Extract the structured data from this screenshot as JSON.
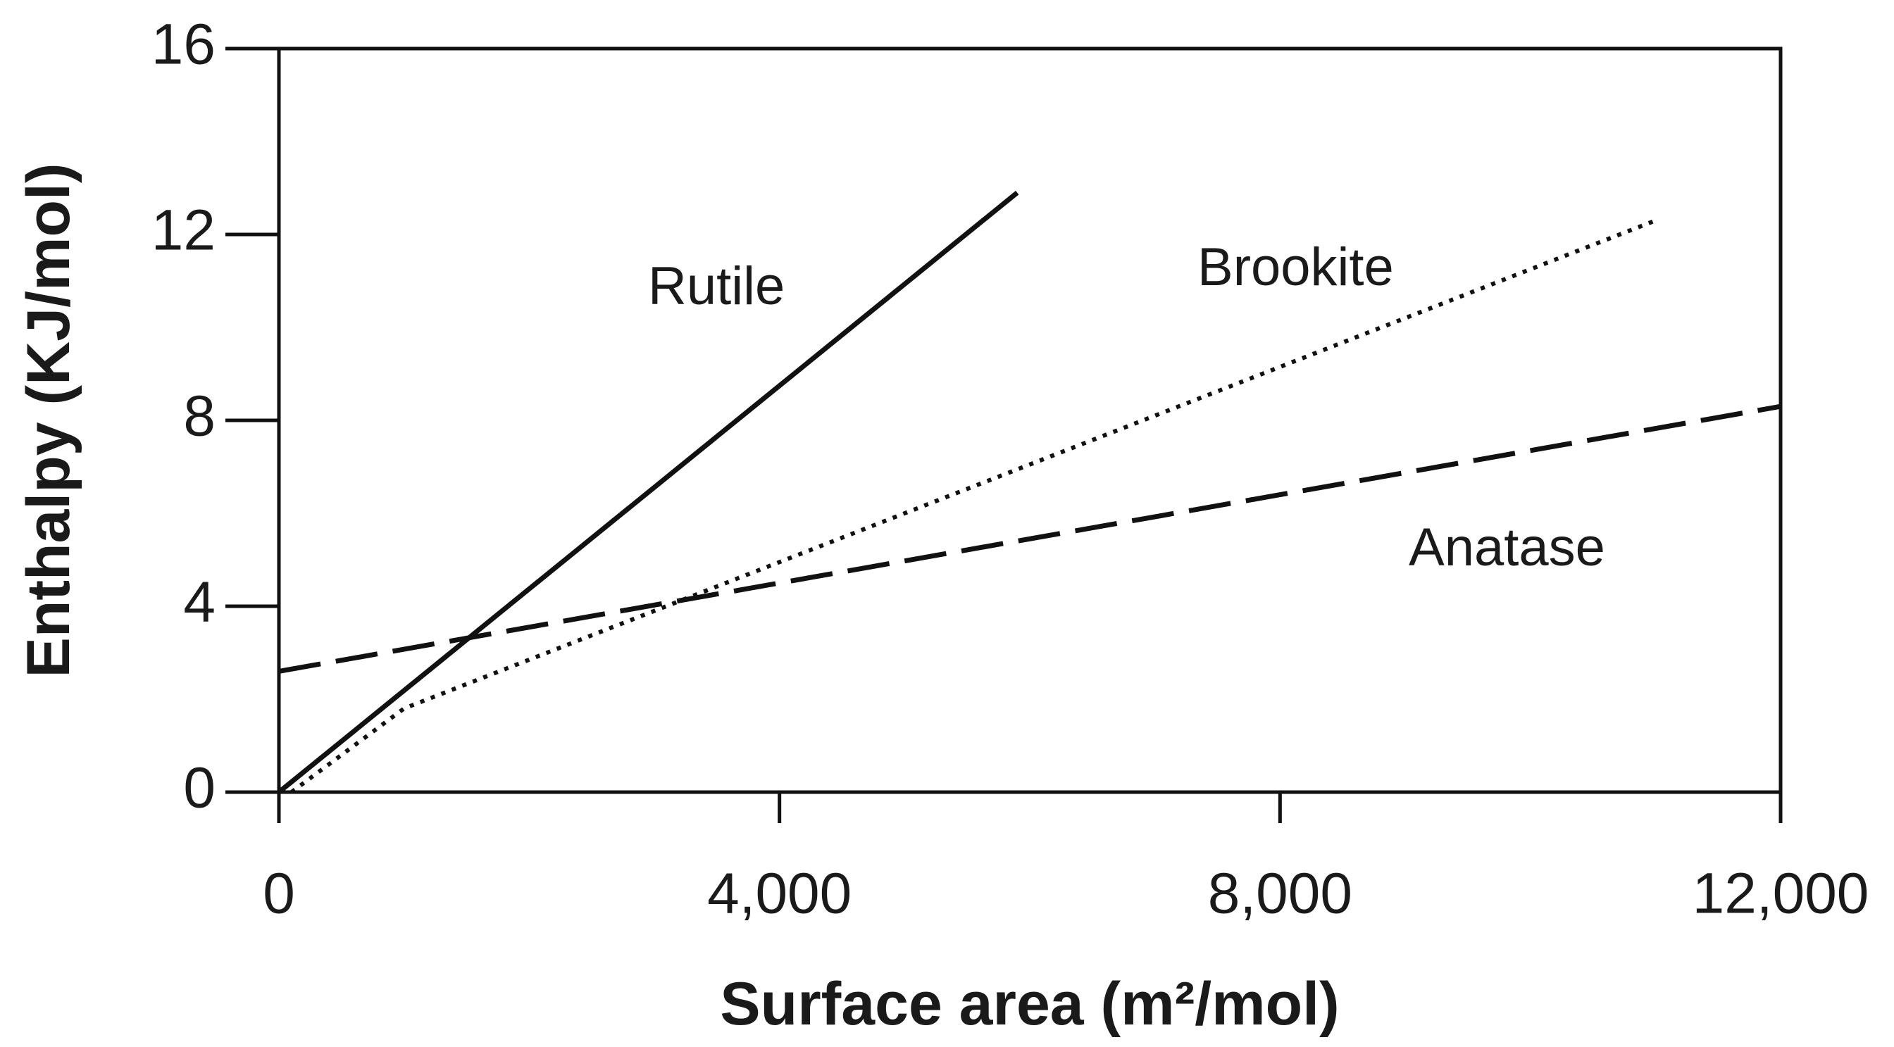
{
  "chart_data": {
    "type": "line",
    "xlabel": "Surface area (m²/mol)",
    "ylabel": "Enthalpy (KJ/mol)",
    "xlim": [
      0,
      12000
    ],
    "ylim": [
      0,
      16
    ],
    "xticks": [
      0,
      {
        "value": 4000,
        "label": "4,000"
      },
      {
        "value": 8000,
        "label": "8,000"
      },
      {
        "value": 12000,
        "label": "12,000"
      }
    ],
    "yticks": [
      0,
      4,
      8,
      12,
      16
    ],
    "series": [
      {
        "name": "Rutile",
        "color": "#111111",
        "style": "solid",
        "x": [
          0,
          5900
        ],
        "values": [
          0,
          12.9
        ]
      },
      {
        "name": "Brookite",
        "color": "#111111",
        "style": "dotted",
        "x": [
          100,
          1000,
          11000
        ],
        "values": [
          0,
          1.8,
          12.3
        ]
      },
      {
        "name": "Anatase",
        "color": "#111111",
        "style": "dashed",
        "x": [
          0,
          12000
        ],
        "values": [
          2.6,
          8.3
        ]
      }
    ]
  }
}
